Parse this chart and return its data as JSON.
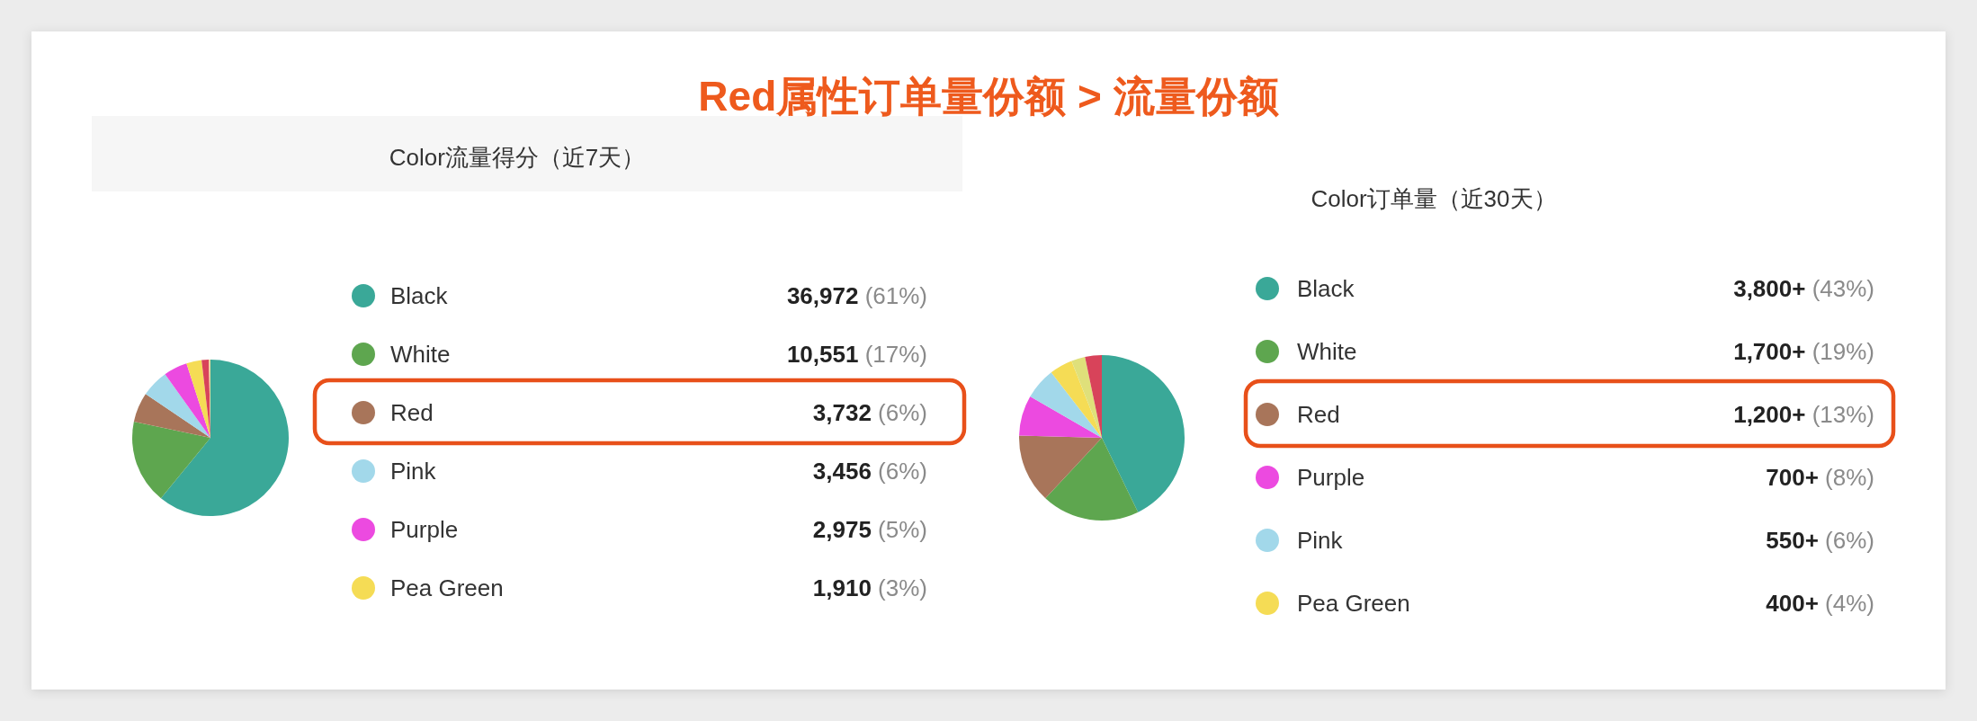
{
  "chart_data": [
    {
      "type": "pie",
      "title": "Color流量得分（近7天）",
      "annotations": [
        "Red属性订单量份额 > 流量份额"
      ],
      "categories": [
        "Black",
        "White",
        "Red",
        "Pink",
        "Purple",
        "Pea Green",
        null,
        null
      ],
      "values": [
        36972,
        10551,
        3732,
        3456,
        2975,
        1910,
        900,
        200
      ],
      "colors": [
        "#3aa898",
        "#5ea64f",
        "#a8755a",
        "#a2d8ea",
        "#ec4ae0",
        "#f5dc55",
        "#d8435a",
        "#ead89a"
      ],
      "value_labels": [
        "36,972 (61%)",
        "10,551 (17%)",
        "3,732 (6%)",
        "3,456 (6%)",
        "2,975 (5%)",
        "1,910 (3%)",
        null,
        null
      ],
      "legend": "right"
    },
    {
      "type": "pie",
      "title": "Color订单量（近30天）",
      "categories": [
        "Black",
        "White",
        "Red",
        "Purple",
        "Pink",
        "Pea Green",
        null,
        null
      ],
      "values": [
        3800,
        1700,
        1200,
        700,
        550,
        400,
        240,
        290
      ],
      "colors": [
        "#3aa898",
        "#5ea64f",
        "#a8755a",
        "#ec4ae0",
        "#a2d8ea",
        "#f5dc55",
        "#dfe07a",
        "#d8435a"
      ],
      "value_labels": [
        "3,800+ (43%)",
        "1,700+ (19%)",
        "1,200+ (13%)",
        "700+ (8%)",
        "550+ (6%)",
        "400+ (4%)",
        null,
        null
      ],
      "legend": "right"
    }
  ]
}
